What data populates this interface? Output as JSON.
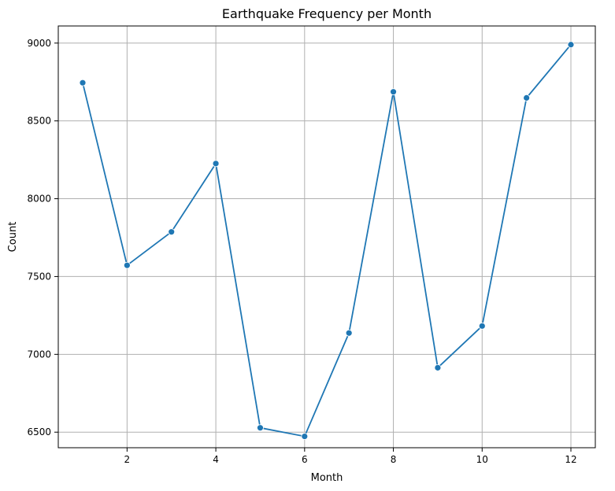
{
  "chart_data": {
    "type": "line",
    "title": "Earthquake Frequency per Month",
    "xlabel": "Month",
    "ylabel": "Count",
    "x": [
      1,
      2,
      3,
      4,
      5,
      6,
      7,
      8,
      9,
      10,
      11,
      12
    ],
    "series": [
      {
        "values": [
          8745,
          7572,
          7787,
          8226,
          6528,
          6473,
          7137,
          8687,
          6914,
          7182,
          8648,
          8990
        ],
        "color": "#1f77b4",
        "marker": "circle"
      }
    ],
    "xlim": [
      0.45,
      12.55
    ],
    "ylim": [
      6400,
      9110
    ],
    "xticks": [
      2,
      4,
      6,
      8,
      10,
      12
    ],
    "yticks": [
      6500,
      7000,
      7500,
      8000,
      8500,
      9000
    ],
    "grid": true,
    "grid_color": "#b0b0b0"
  }
}
